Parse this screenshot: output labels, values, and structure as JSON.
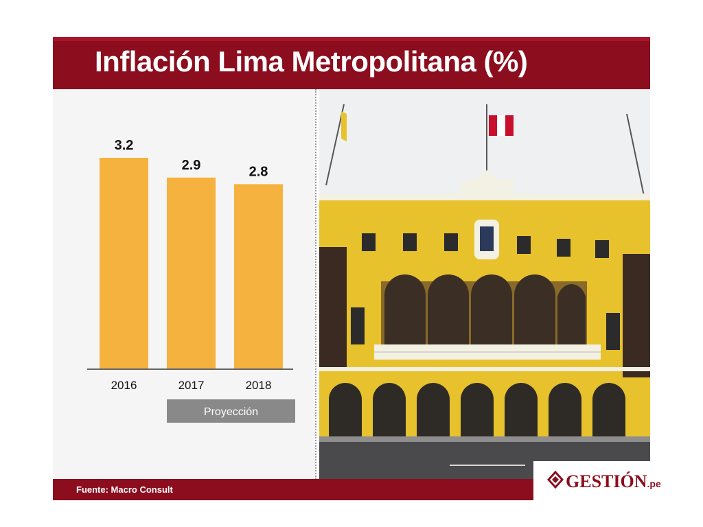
{
  "title": "Inflación Lima Metropolitana (%)",
  "chart_data": {
    "type": "bar",
    "title": "Inflación Lima Metropolitana (%)",
    "categories": [
      "2016",
      "2017",
      "2018"
    ],
    "values": [
      3.2,
      2.9,
      2.8
    ],
    "value_labels": [
      "3.2",
      "2.9",
      "2.8"
    ],
    "ylim": [
      0,
      3.2
    ],
    "grid": false,
    "bar_color": "#f6b23e",
    "projection_label": "Proyección",
    "projection_categories": [
      "2017",
      "2018"
    ]
  },
  "footer": {
    "source": "Fuente:  Macro Consult"
  },
  "logo": {
    "text": "GESTIÓN",
    "suffix": ".pe"
  },
  "colors": {
    "brand": "#8b0d1e",
    "bar": "#f6b23e",
    "projection_box": "#898989",
    "building": "#e8c22c"
  }
}
